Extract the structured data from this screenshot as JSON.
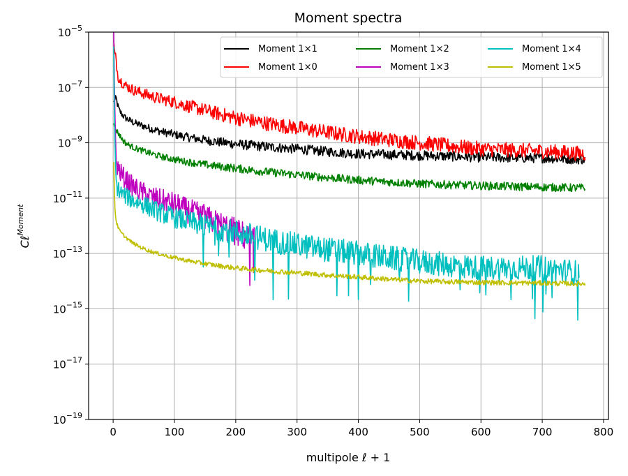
{
  "chart_data": {
    "type": "line",
    "title": "Moment spectra",
    "xlabel": "multipole ℓ + 1",
    "ylabel": "Cℓ",
    "ylabel_superscript": "Moment",
    "yscale": "log",
    "xlim": [
      -40,
      808
    ],
    "ylim": [
      1e-19,
      1e-05
    ],
    "xticks": [
      0,
      100,
      200,
      300,
      400,
      500,
      600,
      700,
      800
    ],
    "xtick_labels": [
      "0",
      "100",
      "200",
      "300",
      "400",
      "500",
      "600",
      "700",
      "800"
    ],
    "yticks": [
      1e-19,
      1e-17,
      1e-15,
      1e-13,
      1e-11,
      1e-09,
      1e-07,
      1e-05
    ],
    "ytick_labels": [
      {
        "base": "10",
        "exp": "−19"
      },
      {
        "base": "10",
        "exp": "−17"
      },
      {
        "base": "10",
        "exp": "−15"
      },
      {
        "base": "10",
        "exp": "−13"
      },
      {
        "base": "10",
        "exp": "−11"
      },
      {
        "base": "10",
        "exp": "−9"
      },
      {
        "base": "10",
        "exp": "−7"
      },
      {
        "base": "10",
        "exp": "−5"
      }
    ],
    "grid": true,
    "legend_position": "top-right",
    "legend_columns": 3,
    "series": [
      {
        "name": "Moment 1×1",
        "color": "#000000",
        "noise": 0.12,
        "dips": false,
        "points": [
          [
            1,
            3e-08
          ],
          [
            5,
            4e-08
          ],
          [
            10,
            1.5e-08
          ],
          [
            20,
            8e-09
          ],
          [
            50,
            4e-09
          ],
          [
            100,
            2e-09
          ],
          [
            200,
            9e-10
          ],
          [
            300,
            6e-10
          ],
          [
            400,
            4e-10
          ],
          [
            500,
            3.5e-10
          ],
          [
            600,
            3e-10
          ],
          [
            700,
            2.8e-10
          ],
          [
            770,
            2.5e-10
          ]
        ]
      },
      {
        "name": "Moment 1×0",
        "color": "#ff0000",
        "noise": 0.18,
        "dips": false,
        "points": [
          [
            1,
            5e-06
          ],
          [
            5,
            1e-06
          ],
          [
            8,
            2.5e-07
          ],
          [
            20,
            1.2e-07
          ],
          [
            50,
            6e-08
          ],
          [
            100,
            3e-08
          ],
          [
            150,
            1.5e-08
          ],
          [
            200,
            8e-09
          ],
          [
            300,
            3.5e-09
          ],
          [
            400,
            1.7e-09
          ],
          [
            500,
            1e-09
          ],
          [
            600,
            6e-10
          ],
          [
            700,
            5e-10
          ],
          [
            770,
            4e-10
          ]
        ]
      },
      {
        "name": "Moment 1×2",
        "color": "#008000",
        "noise": 0.1,
        "dips": false,
        "points": [
          [
            1,
            5e-09
          ],
          [
            5,
            3e-09
          ],
          [
            10,
            2e-09
          ],
          [
            20,
            1e-09
          ],
          [
            50,
            5e-10
          ],
          [
            100,
            2.5e-10
          ],
          [
            200,
            1.2e-10
          ],
          [
            300,
            7e-11
          ],
          [
            400,
            4.5e-11
          ],
          [
            500,
            3.3e-11
          ],
          [
            600,
            2.8e-11
          ],
          [
            700,
            2.5e-11
          ],
          [
            770,
            2.3e-11
          ]
        ]
      },
      {
        "name": "Moment 1×3",
        "color": "#bf00bf",
        "noise": 0.35,
        "dips": true,
        "points": [
          [
            1,
            1e-05
          ],
          [
            3,
            1e-08
          ],
          [
            5,
            2e-10
          ],
          [
            10,
            1e-10
          ],
          [
            20,
            5e-11
          ],
          [
            50,
            1.5e-11
          ],
          [
            100,
            6e-12
          ],
          [
            150,
            2e-12
          ],
          [
            200,
            6e-13
          ],
          [
            230,
            3e-13
          ]
        ]
      },
      {
        "name": "Moment 1×4",
        "color": "#00bfbf",
        "noise": 0.3,
        "dips": true,
        "points": [
          [
            1,
            3e-06
          ],
          [
            3,
            1e-09
          ],
          [
            5,
            3e-11
          ],
          [
            20,
            1.2e-11
          ],
          [
            50,
            6e-12
          ],
          [
            100,
            2e-12
          ],
          [
            200,
            6e-13
          ],
          [
            300,
            2e-13
          ],
          [
            400,
            1e-13
          ],
          [
            500,
            5e-14
          ],
          [
            600,
            3e-14
          ],
          [
            700,
            3e-14
          ],
          [
            760,
            2e-14
          ]
        ]
      },
      {
        "name": "Moment 1×5",
        "color": "#bfbf00",
        "noise": 0.06,
        "dips": false,
        "points": [
          [
            1,
            2e-10
          ],
          [
            3,
            4e-12
          ],
          [
            5,
            1.5e-12
          ],
          [
            10,
            7e-13
          ],
          [
            20,
            4e-13
          ],
          [
            50,
            1.5e-13
          ],
          [
            100,
            7e-14
          ],
          [
            200,
            3e-14
          ],
          [
            300,
            2e-14
          ],
          [
            400,
            1.4e-14
          ],
          [
            500,
            1e-14
          ],
          [
            600,
            9e-15
          ],
          [
            700,
            8.5e-15
          ],
          [
            770,
            8e-15
          ]
        ]
      }
    ]
  }
}
